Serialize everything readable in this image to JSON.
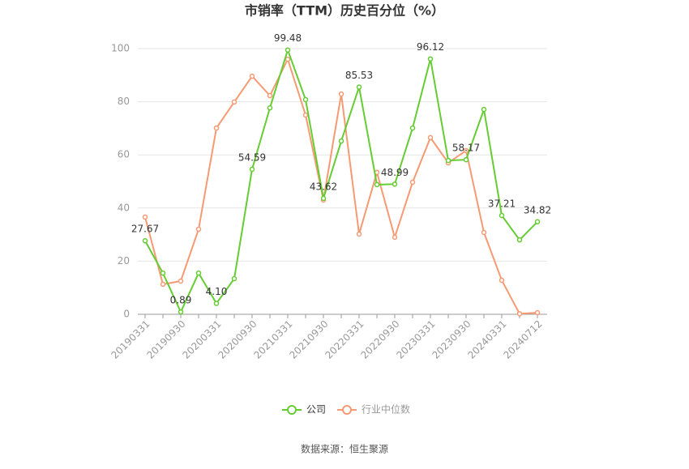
{
  "chart_data": {
    "type": "line",
    "title": "市销率（TTM）历史百分位（%）",
    "source": "数据来源：恒生聚源",
    "categories": [
      "20190331",
      null,
      "20190930",
      null,
      "20200331",
      null,
      "20200930",
      null,
      "20210331",
      null,
      "20210930",
      null,
      "20220331",
      null,
      "20220930",
      null,
      "20230331",
      null,
      "20230930",
      null,
      "20240331",
      null,
      "20240712"
    ],
    "series": [
      {
        "name": "公司",
        "color": "#66cc33",
        "values": [
          27.67,
          15.5,
          0.89,
          15.5,
          4.1,
          13.4,
          54.59,
          77.7,
          99.48,
          80.8,
          43.62,
          65.2,
          85.53,
          48.8,
          48.99,
          70.1,
          96.12,
          57.9,
          58.17,
          77.1,
          37.21,
          28.0,
          34.82
        ],
        "value_labels": [
          "27.67",
          null,
          "0.89",
          null,
          "4.10",
          null,
          "54.59",
          null,
          "99.48",
          null,
          "43.62",
          null,
          "85.53",
          null,
          "48.99",
          null,
          "96.12",
          null,
          "58.17",
          null,
          "37.21",
          null,
          "34.82"
        ]
      },
      {
        "name": "行业中位数",
        "color": "#f59a73",
        "values": [
          36.6,
          11.3,
          12.5,
          32.0,
          70.1,
          79.9,
          89.6,
          82.3,
          96.0,
          75.0,
          43.0,
          82.9,
          30.2,
          53.4,
          29.0,
          49.7,
          66.5,
          57.0,
          61.6,
          30.8,
          12.8,
          0.2,
          0.6
        ]
      }
    ],
    "ylim": [
      0,
      100
    ],
    "yticks": [
      0,
      20,
      40,
      60,
      80,
      100
    ],
    "grid": true
  }
}
